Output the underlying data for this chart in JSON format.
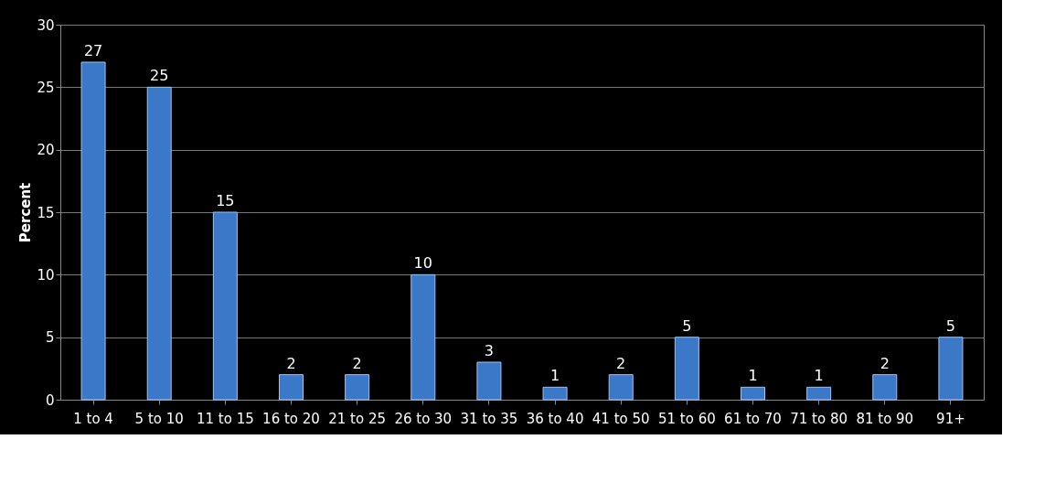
{
  "chart_data": {
    "type": "bar",
    "ylabel": "Percent",
    "categories": [
      "1 to 4",
      "5 to 10",
      "11 to 15",
      "16 to 20",
      "21 to 25",
      "26 to 30",
      "31 to 35",
      "36 to 40",
      "41 to 50",
      "51 to 60",
      "61 to 70",
      "71 to 80",
      "81 to 90",
      "91+"
    ],
    "values": [
      27,
      25,
      15,
      2,
      2,
      10,
      3,
      1,
      2,
      5,
      1,
      1,
      2,
      5
    ],
    "color": "#3c78c8",
    "ylim": [
      0,
      30
    ],
    "yticks": [
      0,
      5,
      10,
      15,
      20,
      25,
      30
    ],
    "grid": "y",
    "data_labels": true
  }
}
